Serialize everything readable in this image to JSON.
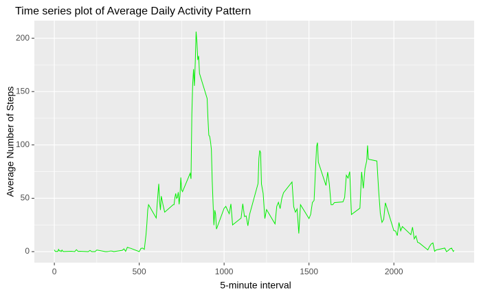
{
  "chart_data": {
    "type": "line",
    "title": "Time series plot of Average Daily Activity Pattern",
    "x_label": "5-minute interval",
    "y_label": "Average Number of Steps",
    "x": [
      0,
      5,
      10,
      15,
      20,
      25,
      30,
      35,
      40,
      45,
      50,
      55,
      100,
      110,
      120,
      130,
      140,
      150,
      200,
      210,
      220,
      230,
      240,
      250,
      300,
      310,
      320,
      330,
      340,
      350,
      400,
      410,
      420,
      430,
      440,
      450,
      500,
      510,
      520,
      530,
      540,
      545,
      550,
      555,
      600,
      610,
      615,
      620,
      625,
      630,
      640,
      650,
      700,
      705,
      710,
      715,
      720,
      725,
      730,
      735,
      740,
      745,
      750,
      755,
      800,
      805,
      810,
      815,
      820,
      825,
      830,
      835,
      840,
      845,
      850,
      855,
      900,
      905,
      910,
      915,
      920,
      925,
      930,
      935,
      940,
      945,
      950,
      955,
      1000,
      1010,
      1020,
      1030,
      1040,
      1050,
      1100,
      1110,
      1120,
      1130,
      1140,
      1150,
      1200,
      1205,
      1210,
      1215,
      1220,
      1230,
      1240,
      1250,
      1300,
      1310,
      1320,
      1330,
      1340,
      1350,
      1400,
      1410,
      1420,
      1430,
      1440,
      1450,
      1500,
      1510,
      1520,
      1530,
      1535,
      1540,
      1545,
      1550,
      1555,
      1600,
      1610,
      1620,
      1630,
      1640,
      1650,
      1700,
      1710,
      1720,
      1730,
      1740,
      1750,
      1800,
      1810,
      1820,
      1830,
      1840,
      1845,
      1850,
      1900,
      1910,
      1920,
      1930,
      1940,
      1950,
      2000,
      2010,
      2020,
      2030,
      2040,
      2050,
      2100,
      2110,
      2120,
      2130,
      2140,
      2150,
      2200,
      2210,
      2220,
      2230,
      2240,
      2250,
      2300,
      2310,
      2320,
      2330,
      2340,
      2350,
      2355
    ],
    "series": [
      {
        "name": "steps",
        "color": "#00ee00",
        "values": [
          1.7,
          0.3,
          0.1,
          0.2,
          0.1,
          2.1,
          0.5,
          0.9,
          0,
          1.5,
          0.3,
          0.1,
          0.3,
          0.2,
          0,
          1.8,
          0.2,
          0.3,
          0,
          1.1,
          0,
          0,
          0,
          1.5,
          0,
          0,
          0.2,
          0.6,
          0.5,
          0,
          1.2,
          2.6,
          0.3,
          4.1,
          3.5,
          3.1,
          0,
          3,
          3.3,
          2.1,
          16,
          26,
          39,
          44,
          31.5,
          53.8,
          63.5,
          47,
          39,
          52,
          44,
          37,
          44,
          44,
          50.5,
          54.5,
          49.9,
          50.9,
          55.7,
          44.3,
          52.3,
          69.5,
          57.8,
          56.2,
          73.4,
          68.2,
          129,
          157.5,
          171,
          155.4,
          177.3,
          206.2,
          195.9,
          179.6,
          183.4,
          167,
          143.5,
          124,
          109,
          108,
          103,
          95.9,
          66.2,
          45.2,
          24.8,
          38.8,
          34.9,
          21.1,
          40.6,
          42.4,
          38.9,
          35.5,
          44.7,
          25,
          31.4,
          44.8,
          32.9,
          33.5,
          24.2,
          34.8,
          63.9,
          87.5,
          94.8,
          92.8,
          63.4,
          54.5,
          31,
          39.4,
          26,
          42.4,
          46.2,
          40.3,
          50,
          55.2,
          65.3,
          42,
          37,
          40,
          17,
          44,
          31,
          35,
          46,
          48,
          65,
          83,
          98.7,
          102.1,
          83.9,
          62,
          74.5,
          63,
          44,
          44,
          46,
          46.6,
          50.7,
          71.6,
          68.9,
          75,
          34.8,
          40.7,
          74.7,
          59.3,
          77.8,
          85,
          99.5,
          86.6,
          84.9,
          58,
          36,
          27.4,
          30.2,
          45.7,
          19.6,
          19.3,
          15,
          27.3,
          19.5,
          23.5,
          15.9,
          22.9,
          11.9,
          14.7,
          8.7,
          8.1,
          1.6,
          4.8,
          7.2,
          8.2,
          0.3,
          1.6,
          3.3,
          0,
          1,
          2.6,
          3.3,
          0.2,
          1.1
        ]
      }
    ],
    "xlim": [
      -117.75,
      2472.75
    ],
    "ylim": [
      -10.31,
      216.48
    ],
    "xticks": [
      0,
      500,
      1000,
      1500,
      2000
    ],
    "yticks": [
      0,
      50,
      100,
      150,
      200
    ],
    "xminor": [
      250,
      750,
      1250,
      1750,
      2250
    ],
    "yminor": [
      25,
      75,
      125,
      175
    ],
    "grid": true
  }
}
